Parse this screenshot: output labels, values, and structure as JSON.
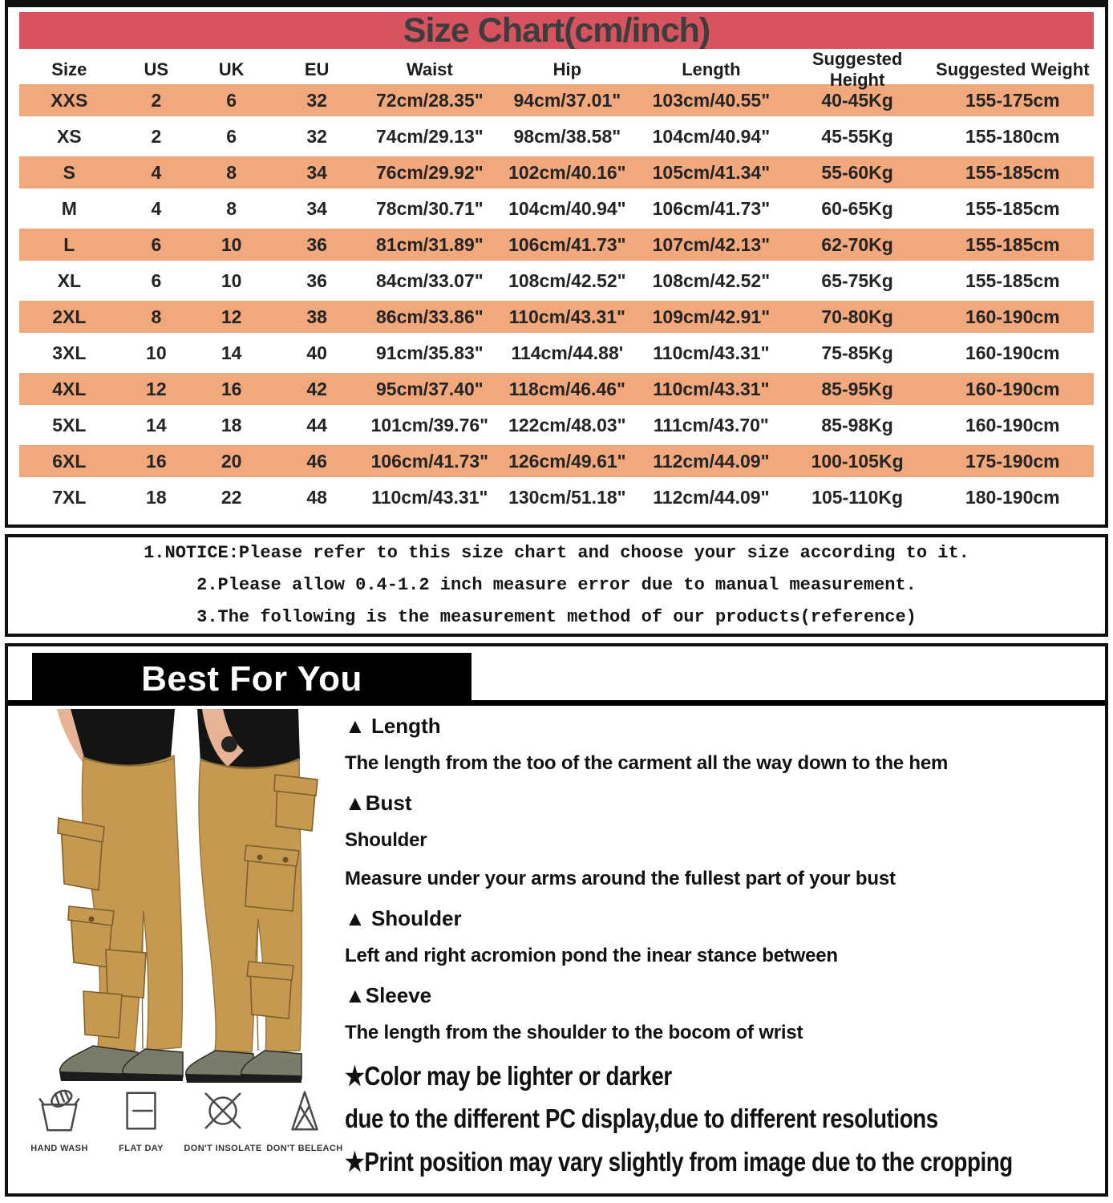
{
  "title": "Size Chart(cm/inch)",
  "table": {
    "headers": [
      "Size",
      "US",
      "UK",
      "EU",
      "Waist",
      "Hip",
      "Length",
      "Suggested Height",
      "Suggested Weight"
    ],
    "rows": [
      [
        "XXS",
        "2",
        "6",
        "32",
        "72cm/28.35\"",
        "94cm/37.01\"",
        "103cm/40.55\"",
        "40-45Kg",
        "155-175cm"
      ],
      [
        "XS",
        "2",
        "6",
        "32",
        "74cm/29.13\"",
        "98cm/38.58\"",
        "104cm/40.94\"",
        "45-55Kg",
        "155-180cm"
      ],
      [
        "S",
        "4",
        "8",
        "34",
        "76cm/29.92\"",
        "102cm/40.16\"",
        "105cm/41.34\"",
        "55-60Kg",
        "155-185cm"
      ],
      [
        "M",
        "4",
        "8",
        "34",
        "78cm/30.71\"",
        "104cm/40.94\"",
        "106cm/41.73\"",
        "60-65Kg",
        "155-185cm"
      ],
      [
        "L",
        "6",
        "10",
        "36",
        "81cm/31.89\"",
        "106cm/41.73\"",
        "107cm/42.13\"",
        "62-70Kg",
        "155-185cm"
      ],
      [
        "XL",
        "6",
        "10",
        "36",
        "84cm/33.07\"",
        "108cm/42.52\"",
        "108cm/42.52\"",
        "65-75Kg",
        "155-185cm"
      ],
      [
        "2XL",
        "8",
        "12",
        "38",
        "86cm/33.86\"",
        "110cm/43.31\"",
        "109cm/42.91\"",
        "70-80Kg",
        "160-190cm"
      ],
      [
        "3XL",
        "10",
        "14",
        "40",
        "91cm/35.83\"",
        "114cm/44.88'",
        "110cm/43.31\"",
        "75-85Kg",
        "160-190cm"
      ],
      [
        "4XL",
        "12",
        "16",
        "42",
        "95cm/37.40\"",
        "118cm/46.46\"",
        "110cm/43.31\"",
        "85-95Kg",
        "160-190cm"
      ],
      [
        "5XL",
        "14",
        "18",
        "44",
        "101cm/39.76\"",
        "122cm/48.03\"",
        "111cm/43.70\"",
        "85-98Kg",
        "160-190cm"
      ],
      [
        "6XL",
        "16",
        "20",
        "46",
        "106cm/41.73\"",
        "126cm/49.61\"",
        "112cm/44.09\"",
        "100-105Kg",
        "175-190cm"
      ],
      [
        "7XL",
        "18",
        "22",
        "48",
        "110cm/43.31\"",
        "130cm/51.18\"",
        "112cm/44.09\"",
        "105-110Kg",
        "180-190cm"
      ]
    ]
  },
  "notice": {
    "line1": "1.NOTICE:Please refer to this size chart and choose your size according to it.",
    "line2": "2.Please allow 0.4-1.2 inch measure error due to manual measurement.",
    "line3": "3.The following is the measurement method of our products(reference)"
  },
  "best_for_you": {
    "banner": "Best For You",
    "lines": [
      {
        "style": "heading",
        "text": "▲ Length"
      },
      {
        "style": "body",
        "text": "The length from the too of the carment all the way down to the hem"
      },
      {
        "style": "heading",
        "text": "▲Bust"
      },
      {
        "style": "body",
        "text": "Shoulder"
      },
      {
        "style": "body",
        "text": "Measure under your arms around the fullest part of your bust"
      },
      {
        "style": "heading",
        "text": "▲ Shoulder"
      },
      {
        "style": "body",
        "text": "Left and right acromion pond the inear stance between"
      },
      {
        "style": "heading",
        "text": "▲Sleeve"
      },
      {
        "style": "body",
        "text": "The length from the shoulder to the bocom of wrist"
      },
      {
        "style": "big",
        "text": "★Color may be lighter or darker"
      },
      {
        "style": "big",
        "text": "due to the different PC display,due to different resolutions"
      },
      {
        "style": "big",
        "text": "★Print position may vary slightly from image due to the cropping"
      }
    ]
  },
  "care_icons": [
    {
      "icon": "hand-wash-icon",
      "label": "HAND WASH"
    },
    {
      "icon": "flat-day-icon",
      "label": "FLAT DAY"
    },
    {
      "icon": "dont-insolate-icon",
      "label": "DON'T INSOLATE"
    },
    {
      "icon": "dont-beleach-icon",
      "label": "DON'T BELEACH"
    }
  ],
  "colors": {
    "header_bar": "#d85360",
    "row_highlight": "#f1a87c",
    "banner_bg": "#000000",
    "banner_text": "#ffffff",
    "pants_khaki": "#c59a50"
  }
}
